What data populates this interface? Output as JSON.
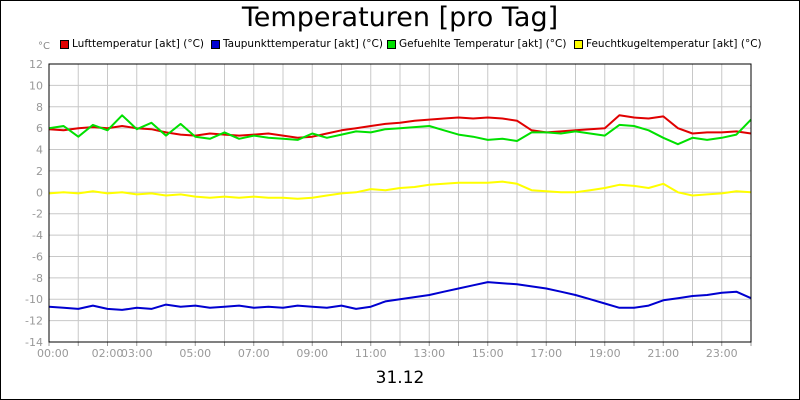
{
  "chart_data": {
    "type": "line",
    "title": "Temperaturen [pro Tag]",
    "unit_label": "°C",
    "date_label": "31.12",
    "ylim": [
      -14,
      12
    ],
    "y_ticks": [
      12,
      10,
      8,
      6,
      4,
      2,
      0,
      -2,
      -4,
      -6,
      -8,
      -10,
      -12,
      -14
    ],
    "xlim": [
      0,
      24
    ],
    "x_ticks": [
      "00:00",
      "02:00",
      "03:00",
      "05:00",
      "07:00",
      "09:00",
      "11:00",
      "13:00",
      "15:00",
      "17:00",
      "19:00",
      "21:00",
      "23:00"
    ],
    "x_tick_hours": [
      0,
      2,
      3,
      5,
      7,
      9,
      11,
      13,
      15,
      17,
      19,
      21,
      23
    ],
    "grid": true,
    "legend_position": "top",
    "series": [
      {
        "name": "Lufttemperatur [akt] (°C)",
        "color": "#e00000",
        "x": [
          0,
          0.5,
          1,
          1.5,
          2,
          2.5,
          3,
          3.5,
          4,
          4.5,
          5,
          5.5,
          6,
          6.5,
          7,
          7.5,
          8,
          8.5,
          9,
          9.5,
          10,
          10.5,
          11,
          11.5,
          12,
          12.5,
          13,
          13.5,
          14,
          14.5,
          15,
          15.5,
          16,
          16.5,
          17,
          17.5,
          18,
          18.5,
          19,
          19.5,
          20,
          20.5,
          21,
          21.5,
          22,
          22.5,
          23,
          23.5,
          24
        ],
        "values": [
          5.9,
          5.8,
          6.0,
          6.1,
          6.0,
          6.2,
          6.0,
          5.9,
          5.6,
          5.4,
          5.3,
          5.5,
          5.4,
          5.3,
          5.4,
          5.5,
          5.3,
          5.1,
          5.2,
          5.5,
          5.8,
          6.0,
          6.2,
          6.4,
          6.5,
          6.7,
          6.8,
          6.9,
          7.0,
          6.9,
          7.0,
          6.9,
          6.7,
          5.8,
          5.6,
          5.7,
          5.8,
          5.9,
          6.0,
          7.2,
          7.0,
          6.9,
          7.1,
          6.0,
          5.5,
          5.6,
          5.6,
          5.7,
          5.5
        ]
      },
      {
        "name": "Taupunkttemperatur [akt] (°C)",
        "color": "#0000d0",
        "x": [
          0,
          0.5,
          1,
          1.5,
          2,
          2.5,
          3,
          3.5,
          4,
          4.5,
          5,
          5.5,
          6,
          6.5,
          7,
          7.5,
          8,
          8.5,
          9,
          9.5,
          10,
          10.5,
          11,
          11.5,
          12,
          12.5,
          13,
          13.5,
          14,
          14.5,
          15,
          15.5,
          16,
          16.5,
          17,
          17.5,
          18,
          18.5,
          19,
          19.5,
          20,
          20.5,
          21,
          21.5,
          22,
          22.5,
          23,
          23.5,
          24
        ],
        "values": [
          -10.7,
          -10.8,
          -10.9,
          -10.6,
          -10.9,
          -11.0,
          -10.8,
          -10.9,
          -10.5,
          -10.7,
          -10.6,
          -10.8,
          -10.7,
          -10.6,
          -10.8,
          -10.7,
          -10.8,
          -10.6,
          -10.7,
          -10.8,
          -10.6,
          -10.9,
          -10.7,
          -10.2,
          -10.0,
          -9.8,
          -9.6,
          -9.3,
          -9.0,
          -8.7,
          -8.4,
          -8.5,
          -8.6,
          -8.8,
          -9.0,
          -9.3,
          -9.6,
          -10.0,
          -10.4,
          -10.8,
          -10.8,
          -10.6,
          -10.1,
          -9.9,
          -9.7,
          -9.6,
          -9.4,
          -9.3,
          -9.9
        ]
      },
      {
        "name": "Gefuehlte Temperatur [akt] (°C)",
        "color": "#00e000",
        "x": [
          0,
          0.5,
          1,
          1.5,
          2,
          2.5,
          3,
          3.5,
          4,
          4.5,
          5,
          5.5,
          6,
          6.5,
          7,
          7.5,
          8,
          8.5,
          9,
          9.5,
          10,
          10.5,
          11,
          11.5,
          12,
          12.5,
          13,
          13.5,
          14,
          14.5,
          15,
          15.5,
          16,
          16.5,
          17,
          17.5,
          18,
          18.5,
          19,
          19.5,
          20,
          20.5,
          21,
          21.5,
          22,
          22.5,
          23,
          23.5,
          24
        ],
        "values": [
          6.0,
          6.2,
          5.2,
          6.3,
          5.8,
          7.2,
          5.9,
          6.5,
          5.3,
          6.4,
          5.2,
          5.0,
          5.6,
          5.0,
          5.3,
          5.1,
          5.0,
          4.9,
          5.5,
          5.1,
          5.4,
          5.7,
          5.6,
          5.9,
          6.0,
          6.1,
          6.2,
          5.8,
          5.4,
          5.2,
          4.9,
          5.0,
          4.8,
          5.6,
          5.6,
          5.5,
          5.7,
          5.5,
          5.3,
          6.3,
          6.2,
          5.8,
          5.1,
          4.5,
          5.1,
          4.9,
          5.1,
          5.4,
          6.8
        ]
      },
      {
        "name": "Feuchtkugeltemperatur [akt] (°C)",
        "color": "#ffff00",
        "x": [
          0,
          0.5,
          1,
          1.5,
          2,
          2.5,
          3,
          3.5,
          4,
          4.5,
          5,
          5.5,
          6,
          6.5,
          7,
          7.5,
          8,
          8.5,
          9,
          9.5,
          10,
          10.5,
          11,
          11.5,
          12,
          12.5,
          13,
          13.5,
          14,
          14.5,
          15,
          15.5,
          16,
          16.5,
          17,
          17.5,
          18,
          18.5,
          19,
          19.5,
          20,
          20.5,
          21,
          21.5,
          22,
          22.5,
          23,
          23.5,
          24
        ],
        "values": [
          -0.1,
          0.0,
          -0.1,
          0.1,
          -0.1,
          0.0,
          -0.2,
          -0.1,
          -0.3,
          -0.2,
          -0.4,
          -0.5,
          -0.4,
          -0.5,
          -0.4,
          -0.5,
          -0.5,
          -0.6,
          -0.5,
          -0.3,
          -0.1,
          0.0,
          0.3,
          0.2,
          0.4,
          0.5,
          0.7,
          0.8,
          0.9,
          0.9,
          0.9,
          1.0,
          0.8,
          0.2,
          0.1,
          0.0,
          0.0,
          0.2,
          0.4,
          0.7,
          0.6,
          0.4,
          0.8,
          0.0,
          -0.3,
          -0.2,
          -0.1,
          0.1,
          0.0
        ]
      }
    ]
  }
}
